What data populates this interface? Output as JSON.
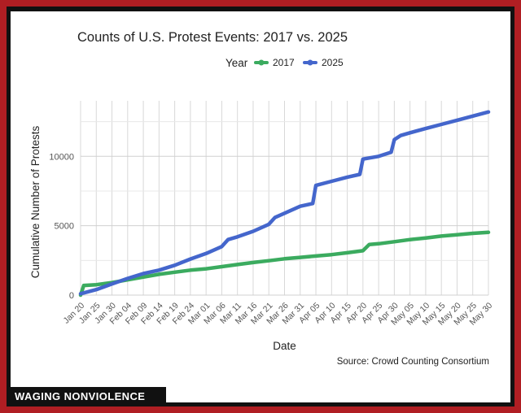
{
  "chart_data": {
    "type": "line",
    "title": "Counts of U.S. Protest Events: 2017 vs. 2025",
    "xlabel": "Date",
    "ylabel": "Cumulative Number of Protests",
    "source": "Source: Crowd Counting Consortium",
    "legend": {
      "title": "Year",
      "position": "top"
    },
    "grid": true,
    "x_ticks": [
      "Jan 20",
      "Jan 25",
      "Jan 30",
      "Feb 04",
      "Feb 09",
      "Feb 14",
      "Feb 19",
      "Feb 24",
      "Mar 01",
      "Mar 06",
      "Mar 11",
      "Mar 16",
      "Mar 21",
      "Mar 26",
      "Mar 31",
      "Apr 05",
      "Apr 10",
      "Apr 15",
      "Apr 20",
      "Apr 25",
      "Apr 30",
      "May 05",
      "May 10",
      "May 15",
      "May 20",
      "May 25",
      "May 30"
    ],
    "y_ticks": [
      0,
      5000,
      10000
    ],
    "ylim": [
      0,
      14000
    ],
    "series": [
      {
        "name": "2017",
        "color": "#3bab5f",
        "points": [
          [
            "Jan 20",
            0
          ],
          [
            "Jan 21",
            700
          ],
          [
            "Jan 25",
            750
          ],
          [
            "Jan 30",
            900
          ],
          [
            "Feb 04",
            1100
          ],
          [
            "Feb 09",
            1300
          ],
          [
            "Feb 14",
            1500
          ],
          [
            "Feb 19",
            1650
          ],
          [
            "Feb 24",
            1800
          ],
          [
            "Mar 01",
            1900
          ],
          [
            "Mar 06",
            2050
          ],
          [
            "Mar 11",
            2200
          ],
          [
            "Mar 16",
            2350
          ],
          [
            "Mar 21",
            2480
          ],
          [
            "Mar 26",
            2620
          ],
          [
            "Mar 31",
            2720
          ],
          [
            "Apr 05",
            2820
          ],
          [
            "Apr 10",
            2920
          ],
          [
            "Apr 15",
            3050
          ],
          [
            "Apr 20",
            3200
          ],
          [
            "Apr 22",
            3650
          ],
          [
            "Apr 25",
            3700
          ],
          [
            "Apr 30",
            3850
          ],
          [
            "May 05",
            4000
          ],
          [
            "May 10",
            4120
          ],
          [
            "May 15",
            4250
          ],
          [
            "May 20",
            4350
          ],
          [
            "May 25",
            4450
          ],
          [
            "May 30",
            4520
          ]
        ]
      },
      {
        "name": "2025",
        "color": "#4466cc",
        "points": [
          [
            "Jan 20",
            100
          ],
          [
            "Jan 25",
            400
          ],
          [
            "Jan 30",
            800
          ],
          [
            "Feb 04",
            1200
          ],
          [
            "Feb 09",
            1550
          ],
          [
            "Feb 14",
            1800
          ],
          [
            "Feb 19",
            2150
          ],
          [
            "Feb 24",
            2600
          ],
          [
            "Mar 01",
            3000
          ],
          [
            "Mar 06",
            3500
          ],
          [
            "Mar 08",
            4000
          ],
          [
            "Mar 11",
            4200
          ],
          [
            "Mar 16",
            4600
          ],
          [
            "Mar 21",
            5100
          ],
          [
            "Mar 23",
            5600
          ],
          [
            "Mar 26",
            5900
          ],
          [
            "Mar 31",
            6400
          ],
          [
            "Apr 04",
            6600
          ],
          [
            "Apr 05",
            7900
          ],
          [
            "Apr 10",
            8200
          ],
          [
            "Apr 15",
            8500
          ],
          [
            "Apr 19",
            8700
          ],
          [
            "Apr 20",
            9800
          ],
          [
            "Apr 25",
            10000
          ],
          [
            "Apr 29",
            10300
          ],
          [
            "Apr 30",
            11200
          ],
          [
            "May 02",
            11500
          ],
          [
            "May 05",
            11700
          ],
          [
            "May 10",
            12000
          ],
          [
            "May 15",
            12300
          ],
          [
            "May 20",
            12600
          ],
          [
            "May 25",
            12900
          ],
          [
            "May 30",
            13200
          ]
        ]
      }
    ]
  },
  "branding": {
    "text": "WAGING NONVIOLENCE"
  }
}
